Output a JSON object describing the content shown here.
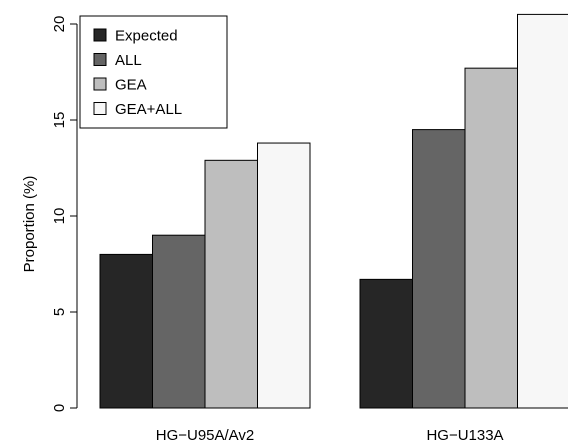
{
  "chart_data": {
    "type": "bar",
    "categories": [
      "HG−U95A/Av2",
      "HG−U133A"
    ],
    "series": [
      {
        "name": "Expected",
        "values": [
          8.0,
          6.7
        ],
        "color": "#262626"
      },
      {
        "name": "ALL",
        "values": [
          9.0,
          14.5
        ],
        "color": "#656565"
      },
      {
        "name": "GEA",
        "values": [
          12.9,
          17.7
        ],
        "color": "#bebebe"
      },
      {
        "name": "GEA+ALL",
        "values": [
          13.8,
          20.5
        ],
        "color": "#f7f7f7"
      }
    ],
    "ylabel": "Proportion (%)",
    "ylim": [
      0,
      20
    ],
    "yticks": [
      "0",
      "5",
      "10",
      "15",
      "20"
    ],
    "legend_position": "top-left",
    "grid": false
  }
}
